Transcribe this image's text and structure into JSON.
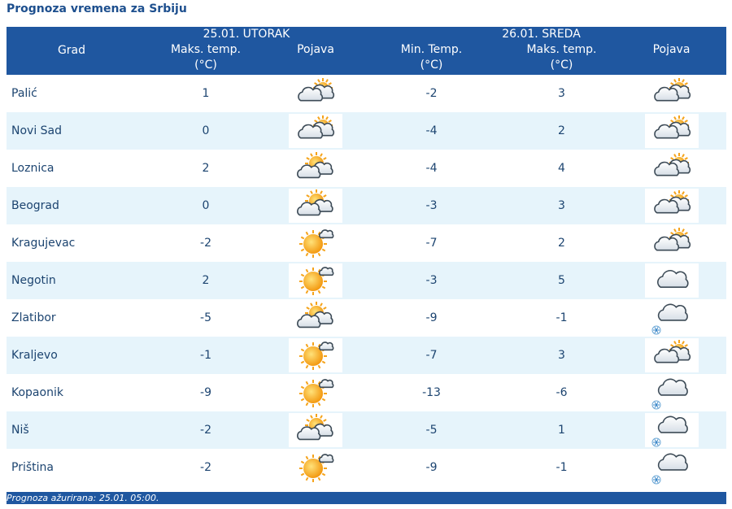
{
  "title": "Prognoza vremena za Srbiju",
  "header": {
    "city": "Grad",
    "day1": {
      "date": "25.01. UTORAK",
      "max_label_1": "Maks. temp.",
      "max_label_2": "(°C)",
      "phenomenon": "Pojava"
    },
    "day2": {
      "date": "26.01. SREDA",
      "min_label_1": "Min. Temp.",
      "min_label_2": "(°C)",
      "max_label_1": "Maks. temp.",
      "max_label_2": "(°C)",
      "phenomenon": "Pojava"
    }
  },
  "rows": [
    {
      "city": "Palić",
      "d1_max": "1",
      "d1_icon": "partly-cloudy-icon",
      "d2_min": "-2",
      "d2_max": "3",
      "d2_icon": "cloudy-sun-icon"
    },
    {
      "city": "Novi Sad",
      "d1_max": "0",
      "d1_icon": "partly-cloudy-icon",
      "d2_min": "-4",
      "d2_max": "2",
      "d2_icon": "cloudy-sun-icon"
    },
    {
      "city": "Loznica",
      "d1_max": "2",
      "d1_icon": "sun-cloud-icon",
      "d2_min": "-4",
      "d2_max": "4",
      "d2_icon": "cloudy-sun-icon"
    },
    {
      "city": "Beograd",
      "d1_max": "0",
      "d1_icon": "sun-cloud-icon",
      "d2_min": "-3",
      "d2_max": "3",
      "d2_icon": "cloudy-sun-icon"
    },
    {
      "city": "Kragujevac",
      "d1_max": "-2",
      "d1_icon": "sunny-icon",
      "d2_min": "-7",
      "d2_max": "2",
      "d2_icon": "cloudy-sun-icon"
    },
    {
      "city": "Negotin",
      "d1_max": "2",
      "d1_icon": "sunny-icon",
      "d2_min": "-3",
      "d2_max": "5",
      "d2_icon": "cloud-icon"
    },
    {
      "city": "Zlatibor",
      "d1_max": "-5",
      "d1_icon": "sun-cloud-icon",
      "d2_min": "-9",
      "d2_max": "-1",
      "d2_icon": "snow-cloud-icon"
    },
    {
      "city": "Kraljevo",
      "d1_max": "-1",
      "d1_icon": "sunny-icon",
      "d2_min": "-7",
      "d2_max": "3",
      "d2_icon": "cloudy-sun-icon"
    },
    {
      "city": "Kopaonik",
      "d1_max": "-9",
      "d1_icon": "sunny-icon",
      "d2_min": "-13",
      "d2_max": "-6",
      "d2_icon": "snow-cloud-icon"
    },
    {
      "city": "Niš",
      "d1_max": "-2",
      "d1_icon": "sun-cloud-icon",
      "d2_min": "-5",
      "d2_max": "1",
      "d2_icon": "snow-cloud-icon"
    },
    {
      "city": "Priština",
      "d1_max": "-2",
      "d1_icon": "sunny-icon",
      "d2_min": "-9",
      "d2_max": "-1",
      "d2_icon": "snow-cloud-icon"
    }
  ],
  "footer": "Prognoza ažurirana:  25.01. 05:00.",
  "colors": {
    "header_bg": "#1f57a0",
    "row_alt": "#e6f4fb",
    "title": "#1d4f8e",
    "sun": "#f5a31a",
    "cloud": "#8a9aa8"
  }
}
